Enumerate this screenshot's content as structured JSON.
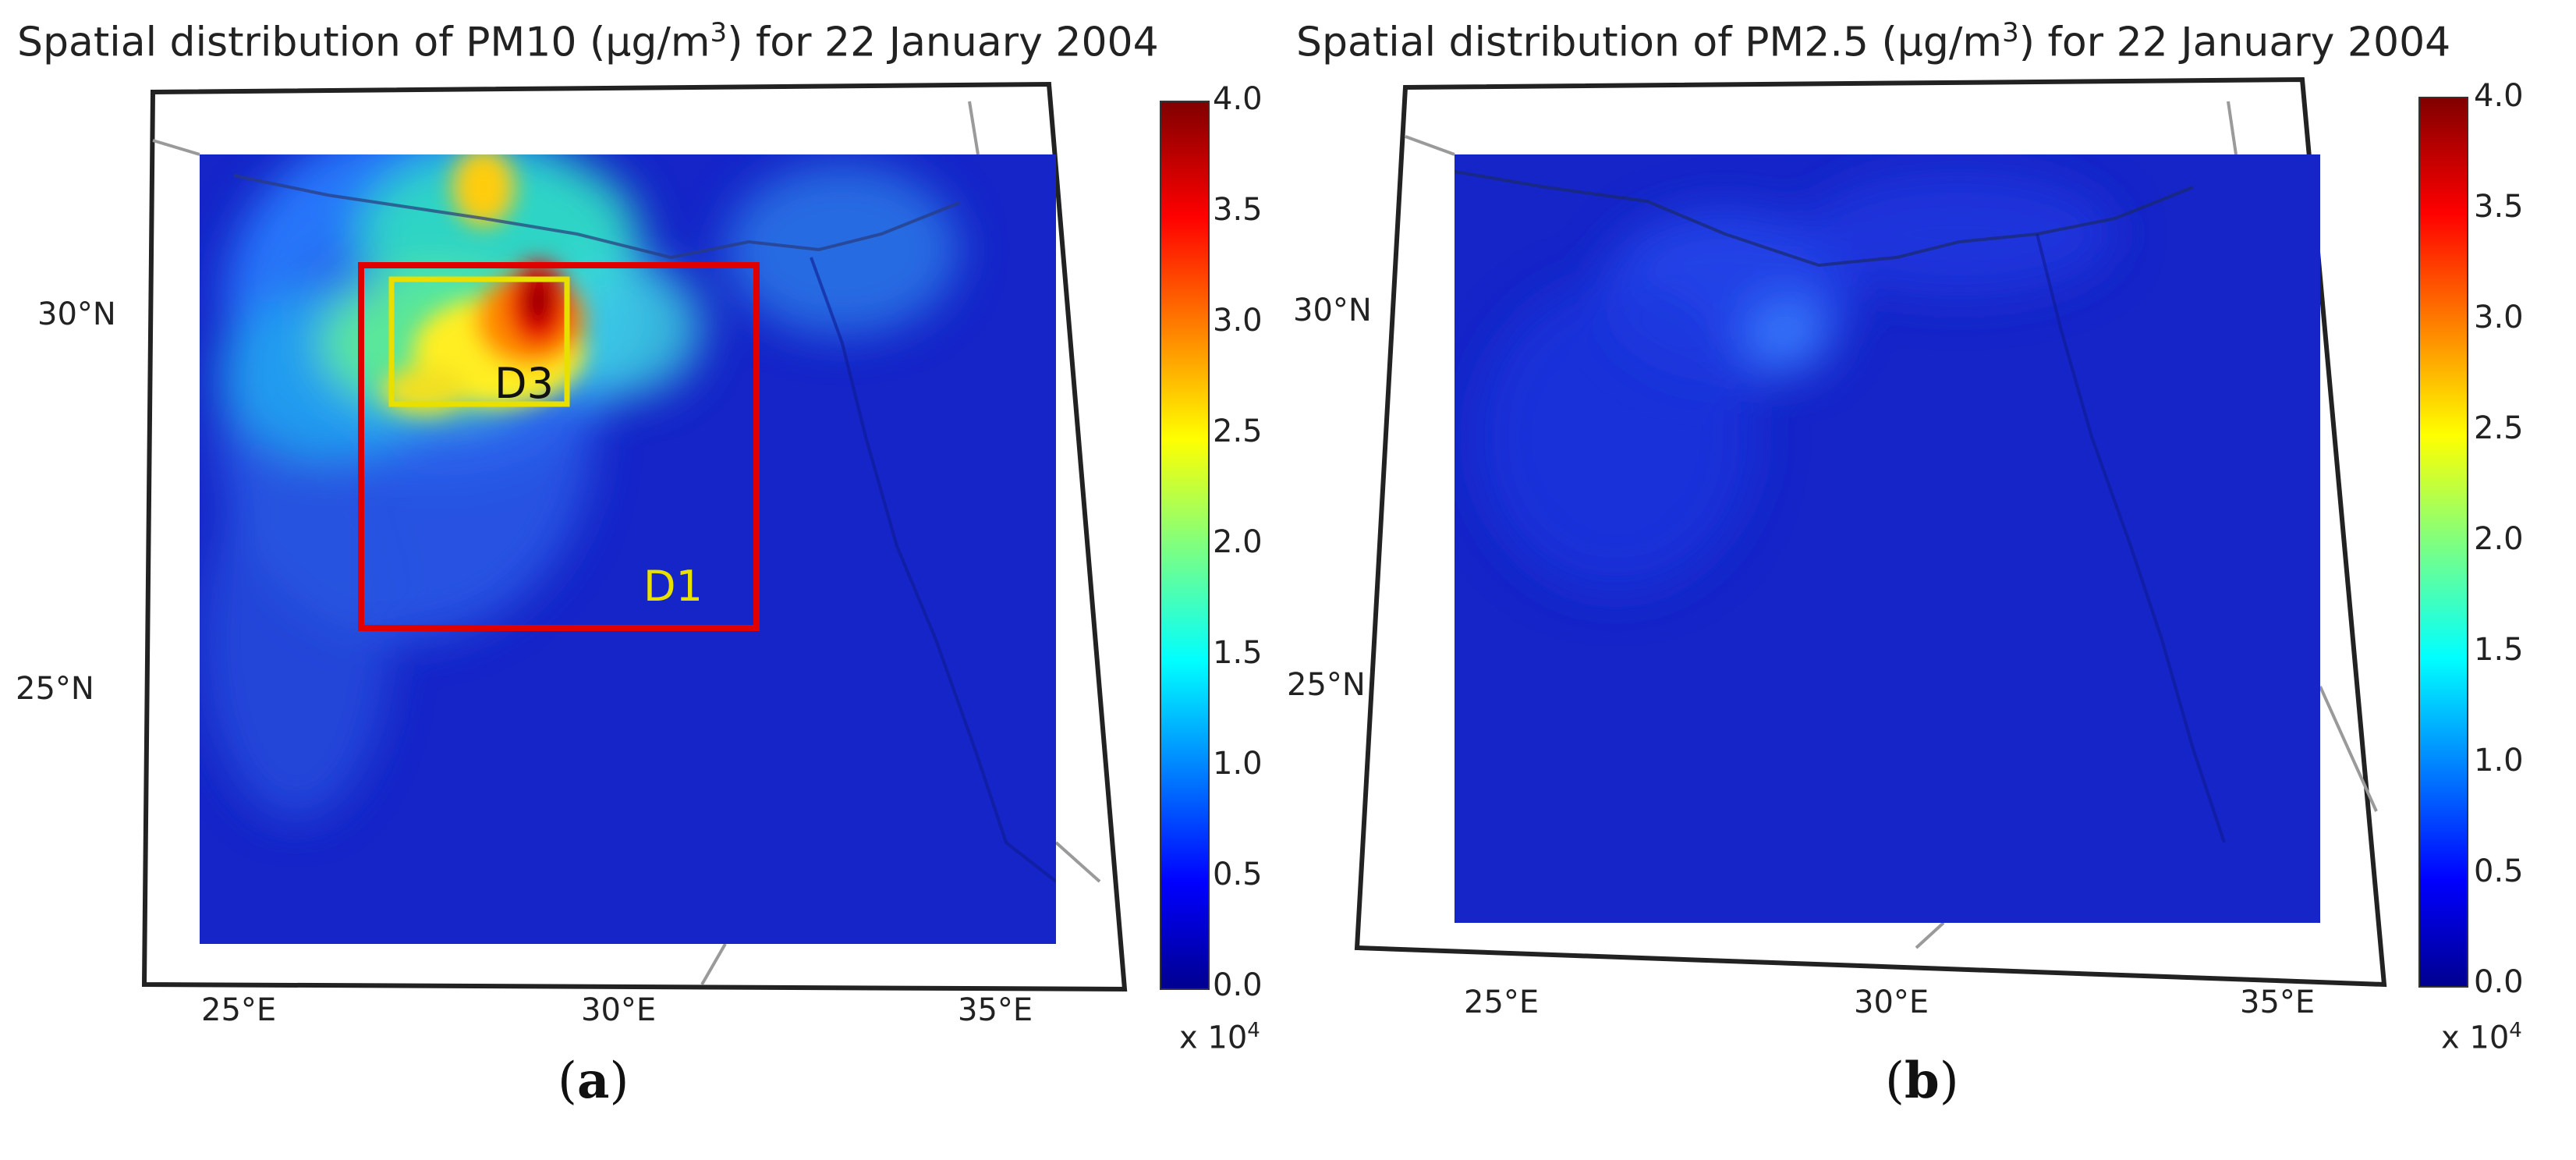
{
  "panels": [
    {
      "id": "a",
      "title_prefix": "Spatial distribution of PM10 (μg/m",
      "title_sup": "3",
      "title_suffix": ") for 22 January 2004",
      "latitude_labels": [
        "30°N",
        "25°N"
      ],
      "longitude_labels": [
        "25°E",
        "30°E",
        "35°E"
      ],
      "colorbar": {
        "ticks": [
          "4.0",
          "3.5",
          "3.0",
          "2.5",
          "2.0",
          "1.5",
          "1.0",
          "0.5",
          "0.0"
        ],
        "multiplier_prefix": "x 10",
        "multiplier_sup": "4"
      },
      "domains": [
        {
          "label": "D1",
          "color": "#e00000",
          "label_color": "#e8e000"
        },
        {
          "label": "D3",
          "color": "#e8e000",
          "label_color": "#111111"
        }
      ],
      "caption_letter": "a"
    },
    {
      "id": "b",
      "title_prefix": "Spatial distribution of PM2.5 (μg/m",
      "title_sup": "3",
      "title_suffix": ") for 22 January 2004",
      "latitude_labels": [
        "30°N",
        "25°N"
      ],
      "longitude_labels": [
        "25°E",
        "30°E",
        "35°E"
      ],
      "colorbar": {
        "ticks": [
          "4.0",
          "3.5",
          "3.0",
          "2.5",
          "2.0",
          "1.5",
          "1.0",
          "0.5",
          "0.0"
        ],
        "multiplier_prefix": "x 10",
        "multiplier_sup": "4"
      },
      "caption_letter": "b"
    }
  ],
  "colors": {
    "field_background": "#1525c8",
    "border_line": "#333333",
    "country_line": "#9a9a9a"
  }
}
